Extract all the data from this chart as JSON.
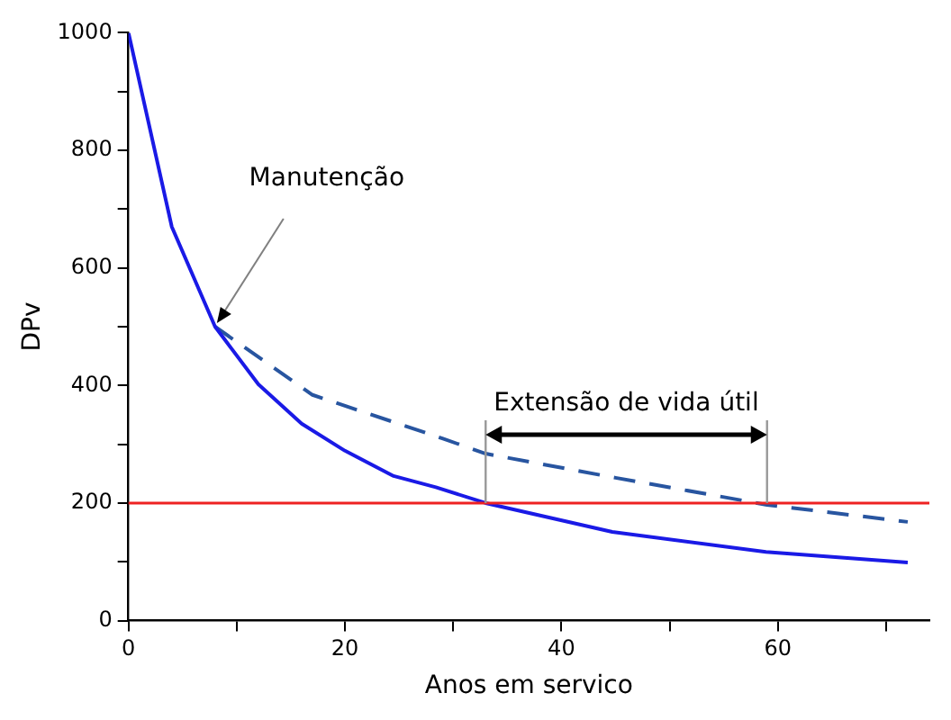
{
  "chart_data": {
    "type": "line",
    "xlabel": "Anos em servico",
    "ylabel": "DPv",
    "xlim": [
      0,
      74
    ],
    "xticks": [
      0,
      {
        "value": 10,
        "label": null
      },
      20,
      {
        "value": 30,
        "label": null
      },
      40,
      {
        "value": 50,
        "label": null
      },
      60,
      {
        "value": 70,
        "label": null
      }
    ],
    "ylim": [
      0,
      1000
    ],
    "yticks": [
      0,
      {
        "value": 100,
        "label": null
      },
      200,
      {
        "value": 300,
        "label": null
      },
      400,
      {
        "value": 500,
        "label": null
      },
      600,
      {
        "value": 700,
        "label": null
      },
      800,
      {
        "value": 900,
        "label": null
      },
      1000
    ],
    "grid": false,
    "legend": false,
    "marker": "none",
    "series": [
      {
        "color": "#1a1ae6",
        "line_style": "solid",
        "x": [
          0,
          4,
          8,
          12,
          16,
          20,
          24.5,
          28.4,
          33,
          44.7,
          58.9,
          72
        ],
        "values": [
          1000,
          670,
          500,
          402,
          335,
          289,
          246,
          227,
          200,
          151,
          117,
          99
        ]
      },
      {
        "color": "#2855a0",
        "line_style": "dashed",
        "x": [
          8,
          17,
          29,
          33,
          45,
          59,
          72
        ],
        "values": [
          500,
          384,
          310,
          284,
          243,
          197,
          168
        ]
      }
    ],
    "ref_lines": [
      {
        "axis": "y",
        "value": 200,
        "color": "#ee2222"
      },
      {
        "axis": "x",
        "value": 33,
        "color": "#999999"
      },
      {
        "axis": "x",
        "value": 59,
        "color": "#999999"
      }
    ],
    "annotations": [
      {
        "text": "Manutenção",
        "x": 8,
        "y": 500
      },
      "Extensão de vida útil"
    ]
  }
}
